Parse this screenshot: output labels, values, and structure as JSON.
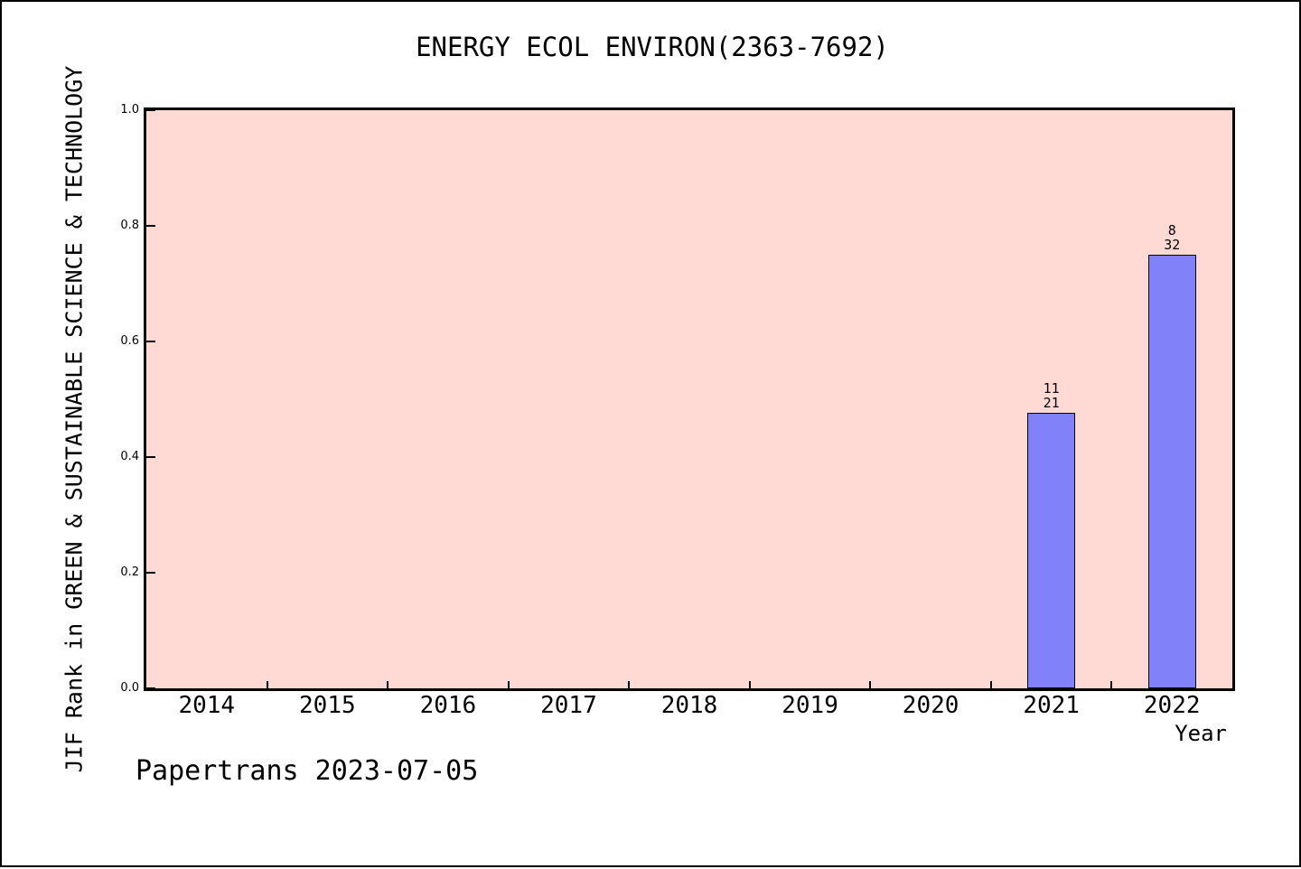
{
  "title": "ENERGY ECOL ENVIRON(2363-7692)",
  "footer": {
    "text": "Papertrans 2023-07-05"
  },
  "colors": {
    "page_background": "#ffffff",
    "page_border": "#000000",
    "plot_background": "#ffd9d4",
    "bar_fill": "#8181fa",
    "bar_edge": "#000000",
    "axis": "#000000",
    "text": "#000000"
  },
  "chart_data": {
    "type": "bar",
    "title": "ENERGY ECOL ENVIRON(2363-7692)",
    "xlabel": "Year",
    "ylabel": "JIF Rank in GREEN & SUSTAINABLE SCIENCE & TECHNOLOGY",
    "categories": [
      "2014",
      "2015",
      "2016",
      "2017",
      "2018",
      "2019",
      "2020",
      "2021",
      "2022"
    ],
    "values": [
      null,
      null,
      null,
      null,
      null,
      null,
      null,
      0.476,
      0.75
    ],
    "bars": [
      {
        "category": "2021",
        "value": 0.476,
        "rank": "11",
        "total": "21"
      },
      {
        "category": "2022",
        "value": 0.75,
        "rank": "8",
        "total": "32"
      }
    ],
    "yticks": [
      0.0,
      0.2,
      0.4,
      0.6,
      0.8,
      1.0
    ],
    "ytick_labels": [
      "0.0",
      "0.2",
      "0.4",
      "0.6",
      "0.8",
      "1.0"
    ],
    "ylim": [
      0.0,
      1.0
    ],
    "grid": false,
    "legend": null,
    "layout_hints": {
      "bar_width_fraction": 0.4,
      "x_ticks_at_category_boundaries": true,
      "ticks_point_inward": true
    }
  }
}
